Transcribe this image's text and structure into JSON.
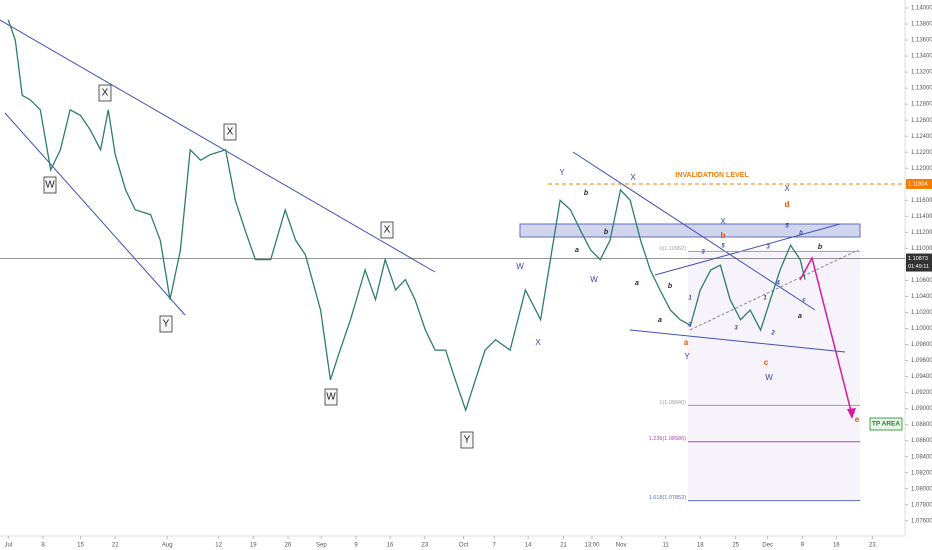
{
  "chart_data": {
    "type": "line",
    "x": [
      0,
      1.0,
      2.0,
      3.2,
      4.6,
      6.1,
      7.5,
      8.9,
      10.4,
      11.8,
      13.3,
      14.4,
      15.4,
      16.9,
      18.3,
      20.5,
      21.9,
      23.3,
      24.8,
      26.2,
      27.7,
      29.1,
      31.3,
      32.7,
      34.1,
      35.6,
      37.8,
      39.9,
      41.4,
      42.8,
      45.0,
      46.4,
      47.8,
      49.3,
      51.4,
      52.9,
      54.3,
      55.8,
      57.2,
      58.6,
      60.1,
      61.5,
      63.0,
      64.4,
      65.9,
      67.3,
      68.7,
      70.2,
      72.3,
      74.5,
      76.7,
      78.1,
      79.5,
      81.0,
      82.4,
      83.9,
      85.3,
      86.7,
      88.2,
      89.6,
      91.1,
      92.5,
      93.9,
      95.4,
      96.8,
      98.3,
      99.7,
      101.2,
      102.6,
      104.0,
      105.5,
      106.9,
      108.4,
      109.8,
      111.2,
      112.7,
      114.1,
      114.8
    ],
    "values": [
      1.1385,
      1.136,
      1.1291,
      1.1285,
      1.1273,
      1.1198,
      1.1223,
      1.1273,
      1.1266,
      1.1248,
      1.1223,
      1.1273,
      1.1217,
      1.1173,
      1.1148,
      1.1142,
      1.111,
      1.1036,
      1.1098,
      1.1223,
      1.121,
      1.1217,
      1.1223,
      1.116,
      1.1123,
      1.1086,
      1.1086,
      1.1148,
      1.111,
      1.1092,
      1.1023,
      1.0936,
      1.0973,
      1.1011,
      1.1073,
      1.1036,
      1.1086,
      1.1048,
      1.1061,
      1.1036,
      1.0998,
      1.0973,
      1.0973,
      1.0936,
      1.0898,
      1.0936,
      1.0973,
      1.0986,
      1.0973,
      1.1048,
      1.1011,
      1.1086,
      1.116,
      1.1148,
      1.1123,
      1.1098,
      1.1086,
      1.111,
      1.1173,
      1.116,
      1.111,
      1.1073,
      1.1048,
      1.1023,
      1.1011,
      1.1004,
      1.1048,
      1.1073,
      1.1079,
      1.1036,
      1.1011,
      1.1023,
      1.0998,
      1.1036,
      1.1073,
      1.1104,
      1.1086,
      1.1061
    ],
    "color": "#2e7d6e",
    "xlim": [
      -1.2,
      129.2
    ],
    "xticks": [
      {
        "value": 0,
        "label": "Jul"
      },
      {
        "value": 5.0,
        "label": "8"
      },
      {
        "value": 10.4,
        "label": "15"
      },
      {
        "value": 15.4,
        "label": "22"
      },
      {
        "value": 22.9,
        "label": "Aug"
      },
      {
        "value": 30.3,
        "label": "12"
      },
      {
        "value": 35.3,
        "label": "19"
      },
      {
        "value": 40.3,
        "label": "26"
      },
      {
        "value": 45.1,
        "label": "Sep"
      },
      {
        "value": 50.1,
        "label": "9"
      },
      {
        "value": 55.0,
        "label": "16"
      },
      {
        "value": 60.0,
        "label": "23"
      },
      {
        "value": 65.6,
        "label": "Oct"
      },
      {
        "value": 70.0,
        "label": "7"
      },
      {
        "value": 74.9,
        "label": "14"
      },
      {
        "value": 80.0,
        "label": "21"
      },
      {
        "value": 84.1,
        "label": "13:00"
      },
      {
        "value": 88.3,
        "label": "Nov"
      },
      {
        "value": 94.7,
        "label": "11"
      },
      {
        "value": 99.7,
        "label": "18"
      },
      {
        "value": 104.8,
        "label": "25"
      },
      {
        "value": 109.4,
        "label": "Dec"
      },
      {
        "value": 114.4,
        "label": "9"
      },
      {
        "value": 119.3,
        "label": "16"
      },
      {
        "value": 124.5,
        "label": "23"
      }
    ],
    "ylim": [
      1.0741,
      1.141
    ],
    "yticks": [
      {
        "value": 1.14,
        "label": "1.14000"
      },
      {
        "value": 1.138,
        "label": "1.13800"
      },
      {
        "value": 1.136,
        "label": "1.13600"
      },
      {
        "value": 1.134,
        "label": "1.13400"
      },
      {
        "value": 1.132,
        "label": "1.13200"
      },
      {
        "value": 1.13,
        "label": "1.13000"
      },
      {
        "value": 1.128,
        "label": "1.12800"
      },
      {
        "value": 1.126,
        "label": "1.12600"
      },
      {
        "value": 1.124,
        "label": "1.12400"
      },
      {
        "value": 1.122,
        "label": "1.12200"
      },
      {
        "value": 1.12,
        "label": "1.12000"
      },
      {
        "value": 1.118,
        "label": "1.11800"
      },
      {
        "value": 1.116,
        "label": "1.11600"
      },
      {
        "value": 1.114,
        "label": "1.11400"
      },
      {
        "value": 1.112,
        "label": "1.11200"
      },
      {
        "value": 1.11,
        "label": "1.11000"
      },
      {
        "value": 1.108,
        "label": "1.10800"
      },
      {
        "value": 1.106,
        "label": "1.10600"
      },
      {
        "value": 1.104,
        "label": "1.10400"
      },
      {
        "value": 1.102,
        "label": "1.10200"
      },
      {
        "value": 1.1,
        "label": "1.10000"
      },
      {
        "value": 1.098,
        "label": "1.09800"
      },
      {
        "value": 1.096,
        "label": "1.09600"
      },
      {
        "value": 1.094,
        "label": "1.09400"
      },
      {
        "value": 1.092,
        "label": "1.09200"
      },
      {
        "value": 1.09,
        "label": "1.09000"
      },
      {
        "value": 1.088,
        "label": "1.08800"
      },
      {
        "value": 1.086,
        "label": "1.08600"
      },
      {
        "value": 1.084,
        "label": "1.08400"
      },
      {
        "value": 1.082,
        "label": "1.08200"
      },
      {
        "value": 1.08,
        "label": "1.08000"
      },
      {
        "value": 1.078,
        "label": "1.07800"
      },
      {
        "value": 1.076,
        "label": "1.07600"
      }
    ],
    "fib_levels": [
      {
        "label": "0(1.10962)",
        "value": 1.10962,
        "color": "#9e9e9e"
      },
      {
        "label": "1(1.09040)",
        "value": 1.0904,
        "color": "#9e9e9e"
      },
      {
        "label": "1.236(1.08586)",
        "value": 1.08586,
        "color": "#ab47bc"
      },
      {
        "label": "1.618(1.07852)",
        "value": 1.07852,
        "color": "#5c6bc0"
      }
    ],
    "invalidation": {
      "label": "INVALIDATION LEVEL",
      "value": 1.11804,
      "color": "#f57c00"
    },
    "current_price": {
      "value": 1.10873,
      "countdown": "01:49:11"
    },
    "tp_label": "TP AREA",
    "annotations": [
      "X",
      "W",
      "Y",
      "X",
      "X",
      "W",
      "Y",
      "W",
      "X",
      "Y",
      "X",
      "W",
      "Y",
      "W",
      "X",
      "X",
      "b",
      "a",
      "b",
      "a",
      "b",
      "a",
      "a",
      "b",
      "c",
      "d",
      "b",
      "a",
      "c",
      "e",
      "5",
      "3",
      "1",
      "2",
      "3",
      "5",
      "4",
      "2",
      "3",
      "1",
      "b"
    ]
  }
}
